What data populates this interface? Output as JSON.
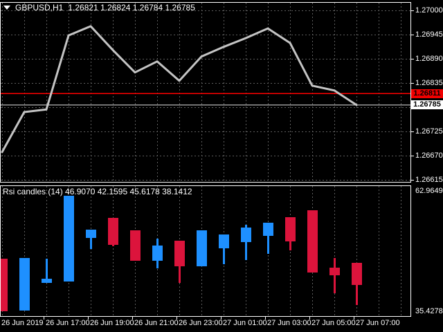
{
  "header": {
    "symbol": "GBPUSD,H1",
    "quotes": "1.26821 1.26824 1.26784 1.26785",
    "ask_label": "1.26811",
    "bid_label": "1.26785"
  },
  "indicator": {
    "label": "Rsi candles (14) 46.9070 42.1595 45.6178 38.1412",
    "max_label": "62.9649",
    "min_label": "35.4278"
  },
  "colors": {
    "background": "#000000",
    "grid": "#5f5f5f",
    "border": "#ffffff",
    "text": "#ffffff",
    "price_line": "#c4c4c4",
    "ask_line": "#ff0000",
    "bid_line": "#999999",
    "ask_badge_bg": "#f00000",
    "bid_badge_bg": "#ffffff",
    "badge_text": "#000000",
    "candle_up": "#1e90ff",
    "candle_down": "#dc143c"
  },
  "chart_data": [
    {
      "type": "line",
      "title": "GBPUSD,H1",
      "source": "close price line chart",
      "x_labels": [
        "26 Jun 2019",
        "26 Jun 17:00",
        "26 Jun 19:00",
        "26 Jun 21:00",
        "26 Jun 23:00",
        "27 Jun 01:00",
        "27 Jun 03:00",
        "27 Jun 05:00",
        "27 Jun 07:00"
      ],
      "times": [
        "26 Jun 15:00",
        "26 Jun 16:00",
        "26 Jun 17:00",
        "26 Jun 18:00",
        "26 Jun 19:00",
        "26 Jun 20:00",
        "26 Jun 21:00",
        "26 Jun 22:00",
        "26 Jun 23:00",
        "27 Jun 00:00",
        "27 Jun 01:00",
        "27 Jun 02:00",
        "27 Jun 03:00",
        "27 Jun 04:00",
        "27 Jun 05:00",
        "27 Jun 06:00",
        "27 Jun 07:00"
      ],
      "values": [
        1.26678,
        1.26769,
        1.26775,
        1.26943,
        1.26964,
        1.2691,
        1.26859,
        1.26884,
        1.2684,
        1.26895,
        1.26917,
        1.26937,
        1.26959,
        1.26926,
        1.26829,
        1.26818,
        1.26785
      ],
      "y_ticks": [
        1.27,
        1.26945,
        1.2689,
        1.26835,
        1.2678,
        1.26725,
        1.2667,
        1.26615
      ],
      "y_tick_labels": [
        "1.27000",
        "1.26945",
        "1.26890",
        "1.26835",
        "1.26780",
        "1.26725",
        "1.26670",
        "1.26615"
      ],
      "ask": 1.26811,
      "bid": 1.26785,
      "grid": true,
      "legend_position": "none"
    },
    {
      "type": "candlestick",
      "title": "Rsi candles (14)",
      "period": 14,
      "last_values_display": "46.9070 42.1595 45.6178 38.1412",
      "y_max": 62.9649,
      "y_min": 35.4278,
      "candles": [
        {
          "time": "26 Jun 15:00",
          "dir": "down",
          "open": 47.59,
          "high": 47.59,
          "low": 36.45,
          "close": 36.45
        },
        {
          "time": "26 Jun 16:00",
          "dir": "up",
          "open": 36.6,
          "high": 47.73,
          "low": 36.6,
          "close": 47.73
        },
        {
          "time": "26 Jun 17:00",
          "dir": "up",
          "open": 42.46,
          "high": 47.59,
          "low": 42.46,
          "close": 43.34
        },
        {
          "time": "26 Jun 18:00",
          "dir": "up",
          "open": 42.75,
          "high": 60.91,
          "low": 42.75,
          "close": 60.91
        },
        {
          "time": "26 Jun 19:00",
          "dir": "up",
          "open": 51.98,
          "high": 53.74,
          "low": 49.63,
          "close": 53.74
        },
        {
          "time": "26 Jun 20:00",
          "dir": "down",
          "open": 56.23,
          "high": 56.23,
          "low": 50.22,
          "close": 50.52
        },
        {
          "time": "26 Jun 21:00",
          "dir": "down",
          "open": 53.59,
          "high": 53.59,
          "low": 47.15,
          "close": 47.15
        },
        {
          "time": "26 Jun 22:00",
          "dir": "up",
          "open": 47.15,
          "high": 51.83,
          "low": 45.54,
          "close": 50.37
        },
        {
          "time": "26 Jun 23:00",
          "dir": "down",
          "open": 51.39,
          "high": 51.39,
          "low": 42.46,
          "close": 45.97
        },
        {
          "time": "27 Jun 00:00",
          "dir": "up",
          "open": 45.97,
          "high": 53.6,
          "low": 45.97,
          "close": 53.6
        },
        {
          "time": "27 Jun 01:00",
          "dir": "up",
          "open": 49.78,
          "high": 52.71,
          "low": 46.41,
          "close": 52.71
        },
        {
          "time": "27 Jun 02:00",
          "dir": "up",
          "open": 51.1,
          "high": 54.76,
          "low": 47.29,
          "close": 54.18
        },
        {
          "time": "27 Jun 03:00",
          "dir": "up",
          "open": 52.42,
          "high": 55.2,
          "low": 48.61,
          "close": 55.2
        },
        {
          "time": "27 Jun 04:00",
          "dir": "down",
          "open": 56.37,
          "high": 56.37,
          "low": 49.34,
          "close": 51.25
        },
        {
          "time": "27 Jun 05:00",
          "dir": "down",
          "open": 57.84,
          "high": 57.84,
          "low": 44.66,
          "close": 44.66
        },
        {
          "time": "27 Jun 06:00",
          "dir": "down",
          "open": 45.68,
          "high": 47.73,
          "low": 40.26,
          "close": 44.07
        },
        {
          "time": "27 Jun 07:00",
          "dir": "down",
          "open": 46.71,
          "high": 46.71,
          "low": 37.77,
          "close": 42.02
        }
      ]
    }
  ]
}
